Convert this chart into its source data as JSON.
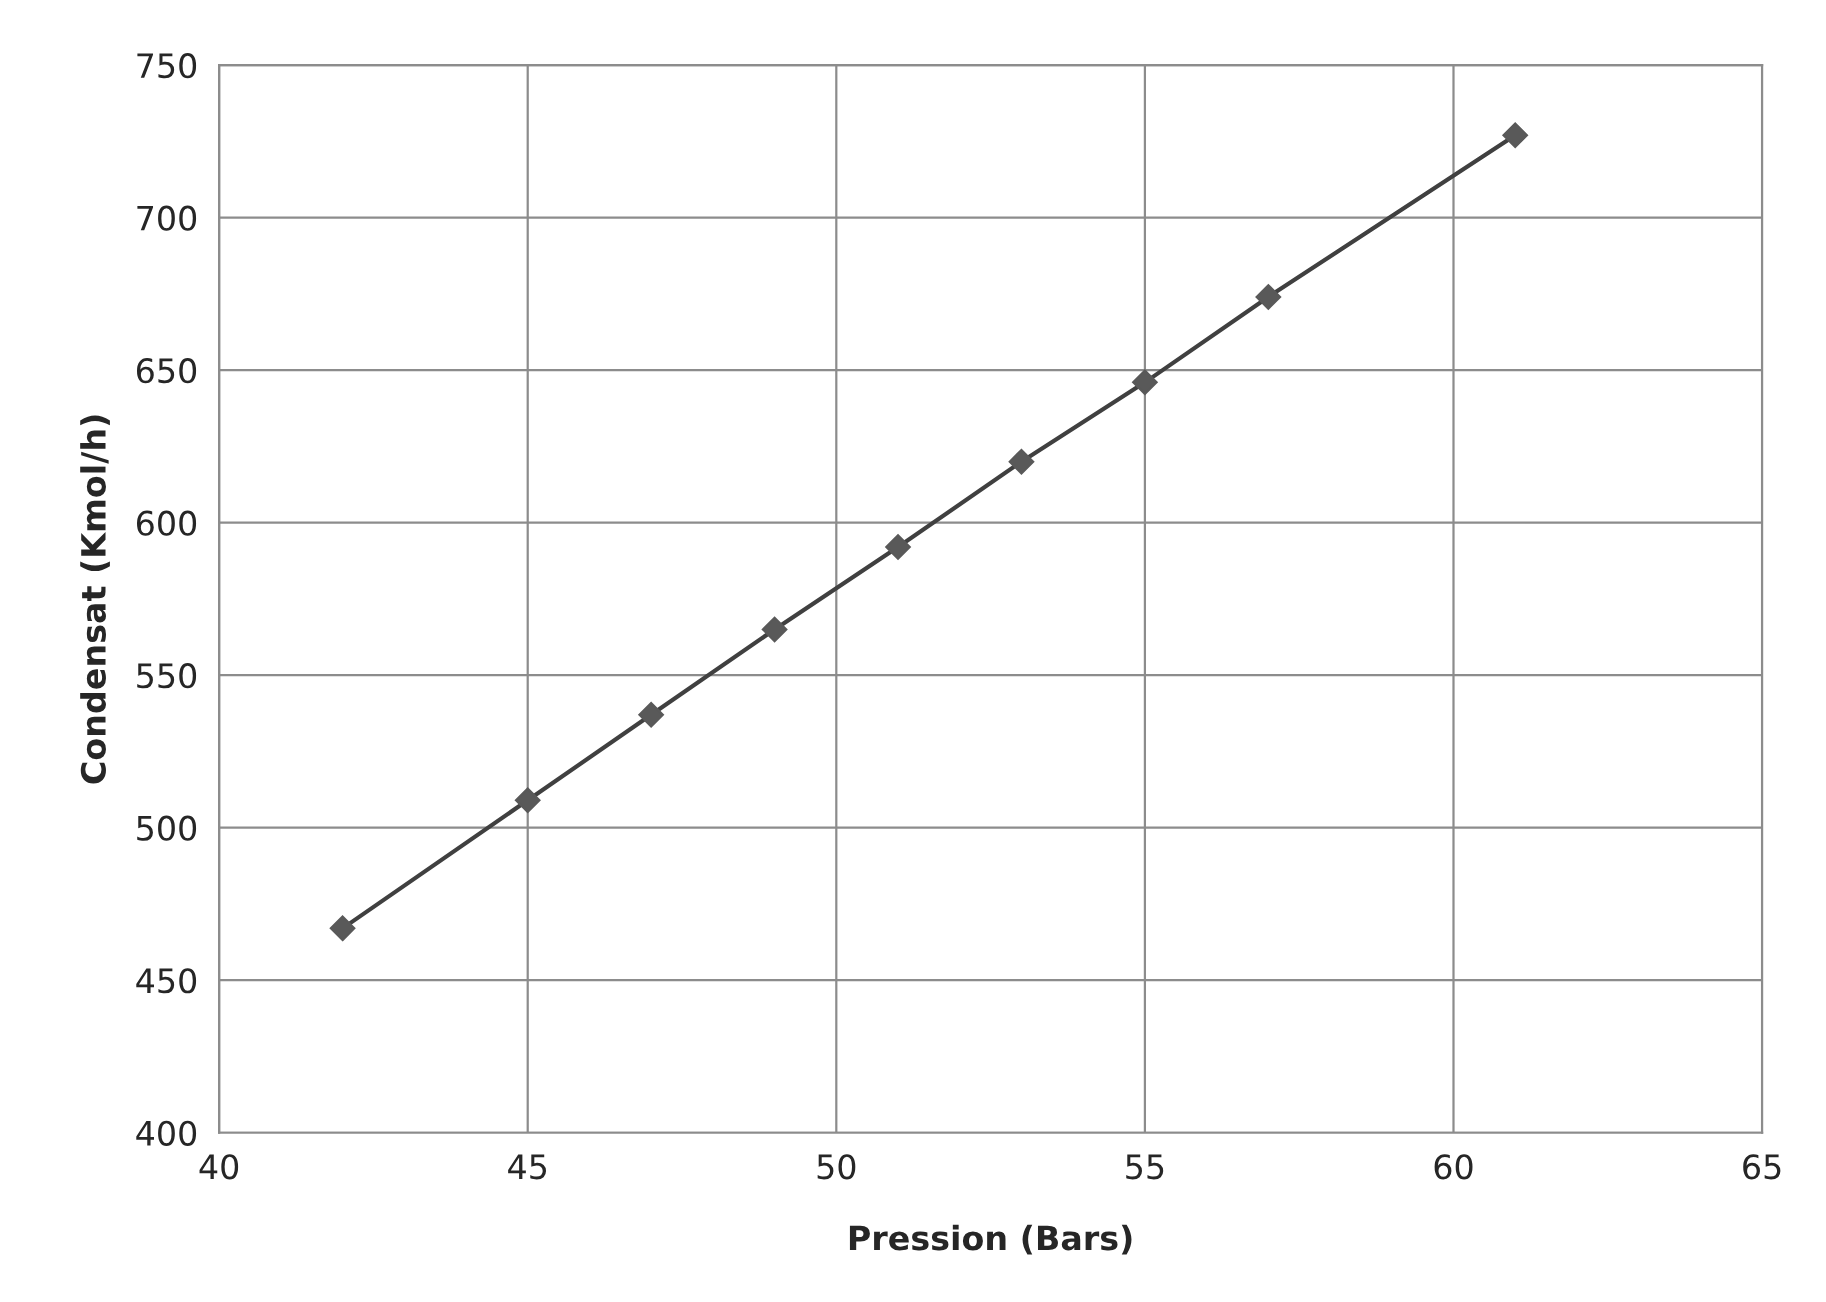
{
  "chart_data": {
    "type": "line",
    "xlabel": "Pression (Bars)",
    "ylabel": "Condensat (Kmol/h)",
    "x": [
      42,
      45,
      47,
      49,
      51,
      53,
      55,
      57,
      61
    ],
    "series": [
      {
        "color": "#404040",
        "values": [
          467,
          509,
          537,
          565,
          592,
          620,
          646,
          674,
          727
        ]
      }
    ],
    "xlim": [
      40,
      65
    ],
    "xticks": [
      40,
      45,
      50,
      55,
      60,
      65
    ],
    "ylim": [
      400,
      750
    ],
    "yticks": [
      400,
      450,
      500,
      550,
      600,
      650,
      700,
      750
    ],
    "grid": true,
    "marker": "diamond",
    "line_style": "solid"
  }
}
